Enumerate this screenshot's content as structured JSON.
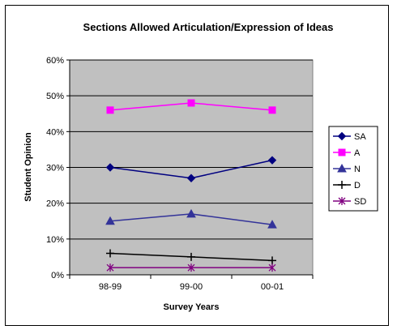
{
  "chart_data": {
    "type": "line",
    "title": "Sections Allowed Articulation/Expression of Ideas",
    "xlabel": "Survey Years",
    "ylabel": "Student Opinion",
    "categories": [
      "98-99",
      "99-00",
      "00-01"
    ],
    "ylim": [
      0,
      0.6
    ],
    "yticks": [
      0,
      0.1,
      0.2,
      0.3,
      0.4,
      0.5,
      0.6
    ],
    "ytick_labels": [
      "0%",
      "10%",
      "20%",
      "30%",
      "40%",
      "50%",
      "60%"
    ],
    "plot_background": "#C0C0C0",
    "grid": "horizontal",
    "legend_position": "right",
    "series": [
      {
        "name": "SA",
        "values": [
          0.3,
          0.27,
          0.32
        ],
        "color": "#000080",
        "marker": "diamond"
      },
      {
        "name": "A",
        "values": [
          0.46,
          0.48,
          0.46
        ],
        "color": "#FF00FF",
        "marker": "square"
      },
      {
        "name": "N",
        "values": [
          0.15,
          0.17,
          0.14
        ],
        "color": "#333399",
        "marker": "triangle"
      },
      {
        "name": "D",
        "values": [
          0.06,
          0.05,
          0.04
        ],
        "color": "#000000",
        "marker": "plus"
      },
      {
        "name": "SD",
        "values": [
          0.02,
          0.02,
          0.02
        ],
        "color": "#800080",
        "marker": "star"
      }
    ]
  }
}
